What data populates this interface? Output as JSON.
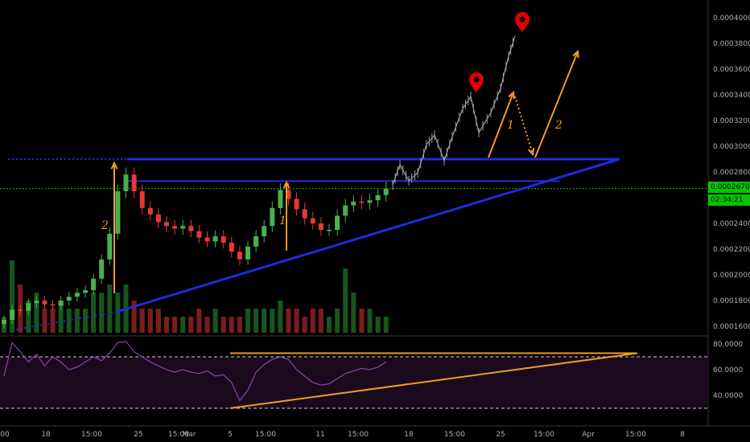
{
  "colors": {
    "background": "#000000",
    "bull": "#4caf50",
    "bear": "#e53935",
    "ghost": "#9e9e9e",
    "trendline": "#1f2bdc",
    "arrow": "#f59a23",
    "marker": "#e00000",
    "current_price": "#00c800",
    "rsi_line": "#8e44ad",
    "rsi_band": "#1b0a1d",
    "axis_text": "#b0b0b0"
  },
  "price_axis": {
    "ticks": [
      "0.0004000",
      "0.0003800",
      "0.0003600",
      "0.0003400",
      "0.0003200",
      "0.0003000",
      "0.0002800",
      "0.0002600",
      "0.0002400",
      "0.0002200",
      "0.0002000",
      "0.0001800",
      "0.0001600"
    ],
    "current_price": "0.0002670",
    "countdown": "02:34:21"
  },
  "rsi_axis": {
    "ticks": [
      "80.0000",
      "60.0000",
      "40.0000"
    ]
  },
  "time_axis": {
    "ticks": [
      "00",
      "18",
      "15:00",
      "25",
      "15:00",
      "Mar",
      "5",
      "15:00",
      "11",
      "15:00",
      "18",
      "15:00",
      "25",
      "15:00",
      "Apr",
      "15:00",
      "8"
    ]
  },
  "annotations": {
    "labels": [
      "2",
      "1",
      "1",
      "2"
    ]
  },
  "icons": {
    "map_pin": "map-pin-icon"
  },
  "chart_data": [
    {
      "type": "candlestick",
      "title": "",
      "y_axis": "price",
      "ylim": [
        0.000155,
        0.000412
      ],
      "current_price": 0.000267,
      "candles_close": [
        0.000165,
        0.000173,
        0.000172,
        0.000178,
        0.00018,
        0.000177,
        0.000176,
        0.00018,
        0.000183,
        0.000186,
        0.000188,
        0.000197,
        0.000212,
        0.000232,
        0.000265,
        0.000278,
        0.000265,
        0.000252,
        0.000247,
        0.000241,
        0.000238,
        0.000236,
        0.000238,
        0.000234,
        0.000229,
        0.000226,
        0.00023,
        0.000225,
        0.000218,
        0.000212,
        0.000222,
        0.00023,
        0.000238,
        0.000252,
        0.000266,
        0.000259,
        0.000251,
        0.000244,
        0.00024,
        0.000235,
        0.000235,
        0.000246,
        0.000254,
        0.000257,
        0.000256,
        0.000258,
        0.000262,
        0.000267
      ],
      "trendlines": {
        "resistance_upper": 0.00029,
        "resistance_lower": 0.000273,
        "support_from": 0.000175,
        "apex": 0.00029
      }
    },
    {
      "type": "bar",
      "title": "",
      "series": [
        {
          "values": [
            0.2,
            0.9,
            0.6,
            0.4,
            0.5,
            0.3,
            0.3,
            0.4,
            0.3,
            0.3,
            0.3,
            0.5,
            0.5,
            0.6,
            0.5,
            0.6,
            0.4,
            0.3,
            0.3,
            0.3,
            0.2,
            0.2,
            0.2,
            0.2,
            0.3,
            0.2,
            0.3,
            0.2,
            0.2,
            0.2,
            0.3,
            0.3,
            0.3,
            0.3,
            0.4,
            0.3,
            0.3,
            0.2,
            0.3,
            0.3,
            0.2,
            0.3,
            0.8,
            0.5,
            0.3,
            0.3,
            0.2,
            0.2
          ]
        }
      ]
    },
    {
      "type": "line",
      "title": "",
      "ylim": [
        25,
        85
      ],
      "levels": [
        70,
        30
      ],
      "series": [
        {
          "values": [
            55,
            81,
            74,
            66,
            72,
            63,
            70,
            66,
            60,
            62,
            66,
            70,
            67,
            73,
            81,
            82,
            74,
            70,
            66,
            63,
            60,
            58,
            60,
            58,
            57,
            59,
            55,
            56,
            50,
            36,
            44,
            58,
            64,
            68,
            70,
            68,
            60,
            55,
            50,
            48,
            49,
            53,
            57,
            59,
            61,
            60,
            62,
            66
          ]
        }
      ],
      "annotation_trendlines": {
        "horizontal": 72.8,
        "rising_from": 30,
        "rising_to": 72.8
      }
    }
  ]
}
